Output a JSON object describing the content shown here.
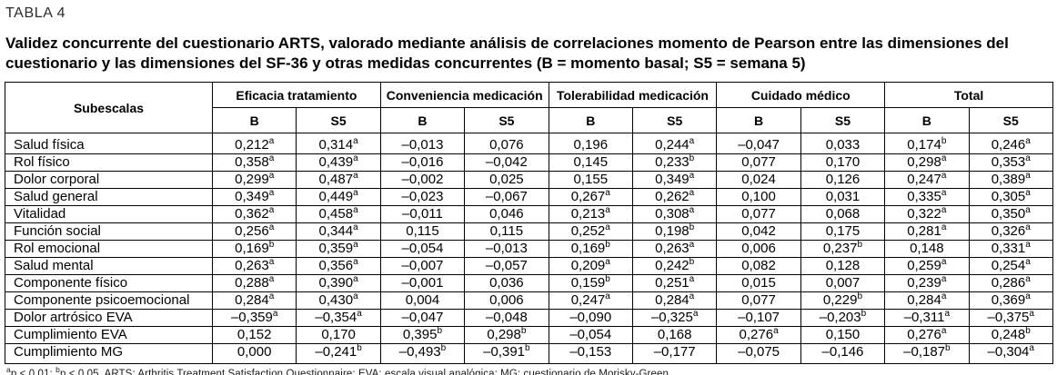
{
  "header": {
    "label": "TABLA 4",
    "title": "Validez concurrente del cuestionario ARTS, valorado mediante análisis de correlaciones momento de Pearson entre las dimensiones del cuestionario y las dimensiones del SF-36 y otras medidas concurrentes (B = momento basal; S5 = semana 5)"
  },
  "chart_data": {
    "type": "table",
    "row_header": "Subescalas",
    "column_groups": [
      {
        "label": "Eficacia tratamiento",
        "subcolumns": [
          "B",
          "S5"
        ]
      },
      {
        "label": "Conveniencia medicación",
        "subcolumns": [
          "B",
          "S5"
        ]
      },
      {
        "label": "Tolerabilidad medicación",
        "subcolumns": [
          "B",
          "S5"
        ]
      },
      {
        "label": "Cuidado médico",
        "subcolumns": [
          "B",
          "S5"
        ]
      },
      {
        "label": "Total",
        "subcolumns": [
          "B",
          "S5"
        ]
      }
    ],
    "rows": [
      {
        "label": "Salud física",
        "values": [
          "0,212^a",
          "0,314^a",
          "–0,013",
          "0,076",
          "0,196",
          "0,244^a",
          "–0,047",
          "0,033",
          "0,174^b",
          "0,246^a"
        ]
      },
      {
        "label": "Rol físico",
        "values": [
          "0,358^a",
          "0,439^a",
          "–0,016",
          "–0,042",
          "0,145",
          "0,233^b",
          "0,077",
          "0,170",
          "0,298^a",
          "0,353^a"
        ]
      },
      {
        "label": "Dolor corporal",
        "values": [
          "0,299^a",
          "0,487^a",
          "–0,002",
          "0,025",
          "0,155",
          "0,349^a",
          "0,024",
          "0,126",
          "0,247^a",
          "0,389^a"
        ]
      },
      {
        "label": "Salud general",
        "values": [
          "0,349^a",
          "0,449^a",
          "–0,023",
          "–0,067",
          "0,267^a",
          "0,262^a",
          "0,100",
          "0,031",
          "0,335^a",
          "0,305^a"
        ]
      },
      {
        "label": "Vitalidad",
        "values": [
          "0,362^a",
          "0,458^a",
          "–0,011",
          "0,046",
          "0,213^a",
          "0,308^a",
          "0,077",
          "0,068",
          "0,322^a",
          "0,350^a"
        ]
      },
      {
        "label": "Función social",
        "values": [
          "0,256^a",
          "0,344^a",
          "0,115",
          "0,115",
          "0,252^a",
          "0,198^b",
          "0,042",
          "0,175",
          "0,281^a",
          "0,326^a"
        ]
      },
      {
        "label": "Rol emocional",
        "values": [
          "0,169^b",
          "0,359^a",
          "–0,054",
          "–0,013",
          "0,169^b",
          "0,263^a",
          "0,006",
          "0,237^b",
          "0,148",
          "0,331^a"
        ]
      },
      {
        "label": "Salud mental",
        "values": [
          "0,263^a",
          "0,356^a",
          "–0,007",
          "–0,057",
          "0,209^a",
          "0,242^b",
          "0,082",
          "0,128",
          "0,259^a",
          "0,254^a"
        ]
      },
      {
        "label": "Componente físico",
        "values": [
          "0,288^a",
          "0,390^a",
          "–0,001",
          "0,036",
          "0,159^b",
          "0,251^a",
          "0,015",
          "0,007",
          "0,239^a",
          "0,286^a"
        ]
      },
      {
        "label": "Componente psicoemocional",
        "values": [
          "0,284^a",
          "0,430^a",
          "0,004",
          "0,006",
          "0,247^a",
          "0,284^a",
          "0,077",
          "0,229^b",
          "0,284^a",
          "0,369^a"
        ]
      },
      {
        "label": "Dolor artrósico EVA",
        "values": [
          "–0,359^a",
          "–0,354^a",
          "–0,047",
          "–0,048",
          "–0,090",
          "–0,325^a",
          "–0,107",
          "–0,203^b",
          "–0,311^a",
          "–0,375^a"
        ]
      },
      {
        "label": "Cumplimiento EVA",
        "values": [
          "0,152",
          "0,170",
          "0,395^b",
          "0,298^b",
          "–0,054",
          "0,168",
          "0,276^a",
          "0,150",
          "0,276^a",
          "0,248^b"
        ]
      },
      {
        "label": "Cumplimiento MG",
        "values": [
          "0,000",
          "–0,241^b",
          "–0,493^b",
          "–0,391^b",
          "–0,153",
          "–0,177",
          "–0,075",
          "–0,146",
          "–0,187^b",
          "–0,304^a"
        ]
      }
    ],
    "footnote_parts": [
      {
        "sup": "a",
        "text": "p < 0,01; "
      },
      {
        "sup": "b",
        "text": "p < 0,05. ARTS: Arthritis Treatment Satisfaction Questionnaire; EVA: escala visual analógica; MG: cuestionario de Morisky-Green."
      }
    ]
  }
}
